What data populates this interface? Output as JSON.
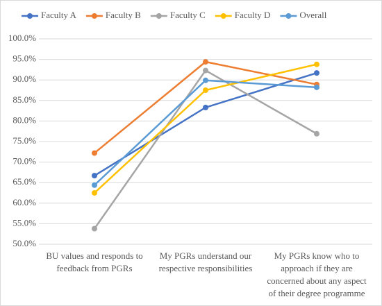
{
  "chart_data": {
    "type": "line",
    "categories": [
      "BU values and responds to feedback from PGRs",
      "My PGRs understand our respective responsibilities",
      "My PGRs know who to approach if they are concerned about any aspect of their degree programme"
    ],
    "series": [
      {
        "name": "Faculty A",
        "color": "#4472c4",
        "values": [
          66.7,
          83.3,
          91.7
        ]
      },
      {
        "name": "Faculty B",
        "color": "#ed7d31",
        "values": [
          72.2,
          94.4,
          88.9
        ]
      },
      {
        "name": "Faculty C",
        "color": "#a5a5a5",
        "values": [
          53.8,
          92.3,
          76.9
        ]
      },
      {
        "name": "Faculty D",
        "color": "#ffc000",
        "values": [
          62.5,
          87.5,
          93.8
        ]
      },
      {
        "name": "Overall",
        "color": "#5b9bd5",
        "values": [
          64.4,
          89.9,
          88.2
        ]
      }
    ],
    "ylim": [
      50,
      100
    ],
    "yticks": [
      {
        "value": 50,
        "label": "50.0%"
      },
      {
        "value": 55,
        "label": "55.0%"
      },
      {
        "value": 60,
        "label": "60.0%"
      },
      {
        "value": 65,
        "label": "65.0%"
      },
      {
        "value": 70,
        "label": "70.0%"
      },
      {
        "value": 75,
        "label": "75.0%"
      },
      {
        "value": 80,
        "label": "80.0%"
      },
      {
        "value": 85,
        "label": "85.0%"
      },
      {
        "value": 90,
        "label": "90.0%"
      },
      {
        "value": 95,
        "label": "95.0%"
      },
      {
        "value": 100,
        "label": "100.0%"
      }
    ],
    "grid": true
  }
}
